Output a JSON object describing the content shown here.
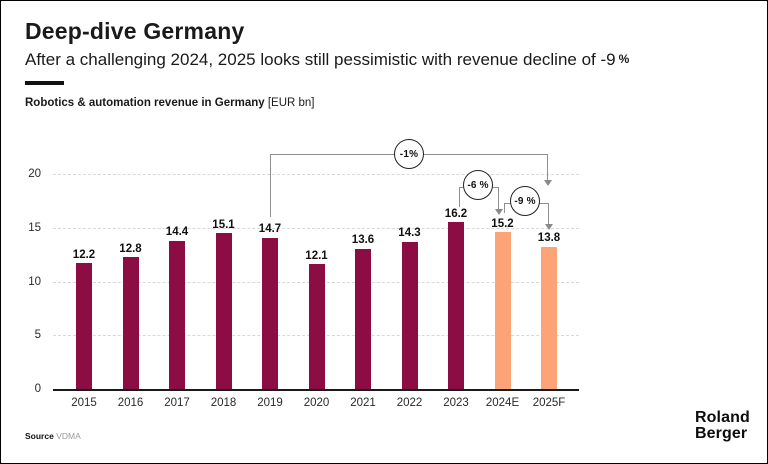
{
  "header": {
    "title": "Deep-dive Germany",
    "subtitle": "After a challenging 2024, 2025 looks still pessimistic with revenue decline of -9",
    "subtitle_pct": "%",
    "chart_label": "Robotics & automation revenue in Germany",
    "chart_unit": " [EUR bn]"
  },
  "chart_data": {
    "type": "bar",
    "title": "Robotics & automation revenue in Germany [EUR bn]",
    "categories": [
      "2015",
      "2016",
      "2017",
      "2018",
      "2019",
      "2020",
      "2021",
      "2022",
      "2023",
      "2024E",
      "2025F"
    ],
    "values": [
      12.2,
      12.8,
      14.4,
      15.1,
      14.7,
      12.1,
      13.6,
      14.3,
      16.2,
      15.2,
      13.8
    ],
    "bar_styles": [
      "historic",
      "historic",
      "historic",
      "historic",
      "historic",
      "historic",
      "historic",
      "historic",
      "historic",
      "forecast",
      "forecast"
    ],
    "yticks": [
      0,
      5,
      10,
      15,
      20
    ],
    "ylim": [
      0,
      21.5
    ],
    "xlabel": "",
    "ylabel": "EUR bn",
    "grid": "horizontal-dashed",
    "legend": "none",
    "colors": {
      "historic": "#8C0D44",
      "forecast": "#FCA478"
    },
    "annotations": [
      {
        "label": "-1%",
        "from": "2019",
        "to": "2025F"
      },
      {
        "label": "-6 %",
        "from": "2023",
        "to": "2024E"
      },
      {
        "label": "-9 %",
        "from": "2024E",
        "to": "2025F"
      }
    ]
  },
  "footer": {
    "source_label": "Source",
    "source_value": "VDMA",
    "logo_line1": "Roland",
    "logo_line2": "Berger"
  }
}
